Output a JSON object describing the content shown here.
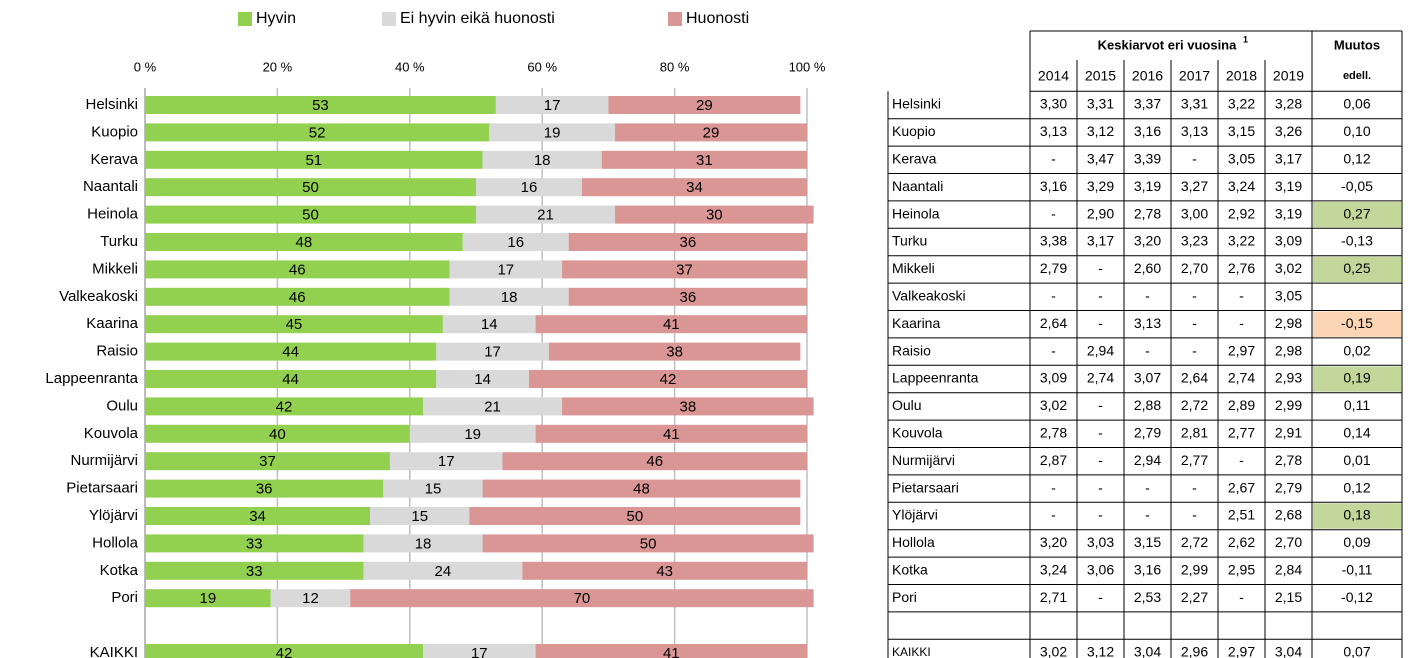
{
  "chart_data": {
    "type": "stacked_bar_horizontal",
    "categories": [
      "Helsinki",
      "Kuopio",
      "Kerava",
      "Naantali",
      "Heinola",
      "Turku",
      "Mikkeli",
      "Valkeakoski",
      "Kaarina",
      "Raisio",
      "Lappeenranta",
      "Oulu",
      "Kouvola",
      "Nurmijärvi",
      "Pietarsaari",
      "Ylöjärvi",
      "Hollola",
      "Kotka",
      "Pori",
      "KAIKKI"
    ],
    "series": [
      {
        "name": "Hyvin",
        "color": "#92d050",
        "values": [
          53,
          52,
          51,
          50,
          50,
          48,
          46,
          46,
          45,
          44,
          44,
          42,
          40,
          37,
          36,
          34,
          33,
          33,
          19,
          42
        ]
      },
      {
        "name": "Ei hyvin eikä huonosti",
        "color": "#d9d9d9",
        "values": [
          17,
          19,
          18,
          16,
          21,
          16,
          17,
          18,
          14,
          17,
          14,
          21,
          19,
          17,
          15,
          15,
          18,
          24,
          12,
          17
        ]
      },
      {
        "name": "Huonosti",
        "color": "#da9694",
        "values": [
          29,
          29,
          31,
          34,
          30,
          36,
          37,
          36,
          41,
          38,
          42,
          38,
          41,
          46,
          48,
          50,
          50,
          43,
          70,
          41
        ]
      }
    ],
    "xlim": [
      0,
      100
    ],
    "xticks": [
      {
        "value": 0,
        "label": "0 %"
      },
      {
        "value": 20,
        "label": "20 %"
      },
      {
        "value": 40,
        "label": "40 %"
      },
      {
        "value": 60,
        "label": "60 %"
      },
      {
        "value": 80,
        "label": "80 %"
      },
      {
        "value": 100,
        "label": "100 %"
      }
    ],
    "grid": true,
    "legend": "top"
  },
  "table": {
    "header": "Keskiarvot eri vuosina",
    "footnote": "1",
    "change_header": "Muutos",
    "change_subheader": "edell.",
    "years": [
      2014,
      2015,
      2016,
      2017,
      2018,
      2019
    ],
    "rows": [
      {
        "name": "Helsinki",
        "values": [
          "3,30",
          "3,31",
          "3,37",
          "3,31",
          "3,22",
          "3,28"
        ],
        "change": "0,06"
      },
      {
        "name": "Kuopio",
        "values": [
          "3,13",
          "3,12",
          "3,16",
          "3,13",
          "3,15",
          "3,26"
        ],
        "change": "0,10"
      },
      {
        "name": "Kerava",
        "values": [
          "-",
          "3,47",
          "3,39",
          "-",
          "3,05",
          "3,17"
        ],
        "change": "0,12"
      },
      {
        "name": "Naantali",
        "values": [
          "3,16",
          "3,29",
          "3,19",
          "3,27",
          "3,24",
          "3,19"
        ],
        "change": "-0,05"
      },
      {
        "name": "Heinola",
        "values": [
          "-",
          "2,90",
          "2,78",
          "3,00",
          "2,92",
          "3,19"
        ],
        "change": "0,27",
        "fill": "#c4d79b"
      },
      {
        "name": "Turku",
        "values": [
          "3,38",
          "3,17",
          "3,20",
          "3,23",
          "3,22",
          "3,09"
        ],
        "change": "-0,13"
      },
      {
        "name": "Mikkeli",
        "values": [
          "2,79",
          "-",
          "2,60",
          "2,70",
          "2,76",
          "3,02"
        ],
        "change": "0,25",
        "fill": "#c4d79b"
      },
      {
        "name": "Valkeakoski",
        "values": [
          "-",
          "-",
          "-",
          "-",
          "-",
          "3,05"
        ],
        "change": null
      },
      {
        "name": "Kaarina",
        "values": [
          "2,64",
          "-",
          "3,13",
          "-",
          "-",
          "2,98"
        ],
        "change": "-0,15",
        "fill": "#fcd5b4"
      },
      {
        "name": "Raisio",
        "values": [
          "-",
          "2,94",
          "-",
          "-",
          "2,97",
          "2,98"
        ],
        "change": "0,02"
      },
      {
        "name": "Lappeenranta",
        "values": [
          "3,09",
          "2,74",
          "3,07",
          "2,64",
          "2,74",
          "2,93"
        ],
        "change": "0,19",
        "fill": "#c4d79b"
      },
      {
        "name": "Oulu",
        "values": [
          "3,02",
          "-",
          "2,88",
          "2,72",
          "2,89",
          "2,99"
        ],
        "change": "0,11"
      },
      {
        "name": "Kouvola",
        "values": [
          "2,78",
          "-",
          "2,79",
          "2,81",
          "2,77",
          "2,91"
        ],
        "change": "0,14"
      },
      {
        "name": "Nurmijärvi",
        "values": [
          "2,87",
          "-",
          "2,94",
          "2,77",
          "-",
          "2,78"
        ],
        "change": "0,01"
      },
      {
        "name": "Pietarsaari",
        "values": [
          "-",
          "-",
          "-",
          "-",
          "2,67",
          "2,79"
        ],
        "change": "0,12"
      },
      {
        "name": "Ylöjärvi",
        "values": [
          "-",
          "-",
          "-",
          "-",
          "2,51",
          "2,68"
        ],
        "change": "0,18",
        "fill": "#c4d79b"
      },
      {
        "name": "Hollola",
        "values": [
          "3,20",
          "3,03",
          "3,15",
          "2,72",
          "2,62",
          "2,70"
        ],
        "change": "0,09"
      },
      {
        "name": "Kotka",
        "values": [
          "3,24",
          "3,06",
          "3,16",
          "2,99",
          "2,95",
          "2,84"
        ],
        "change": "-0,11"
      },
      {
        "name": "Pori",
        "values": [
          "2,71",
          "-",
          "2,53",
          "2,27",
          "-",
          "2,15"
        ],
        "change": "-0,12"
      }
    ],
    "total": {
      "name": "KAIKKI",
      "values": [
        "3,02",
        "3,12",
        "3,04",
        "2,96",
        "2,97",
        "3,04"
      ],
      "change": "0,07"
    }
  }
}
